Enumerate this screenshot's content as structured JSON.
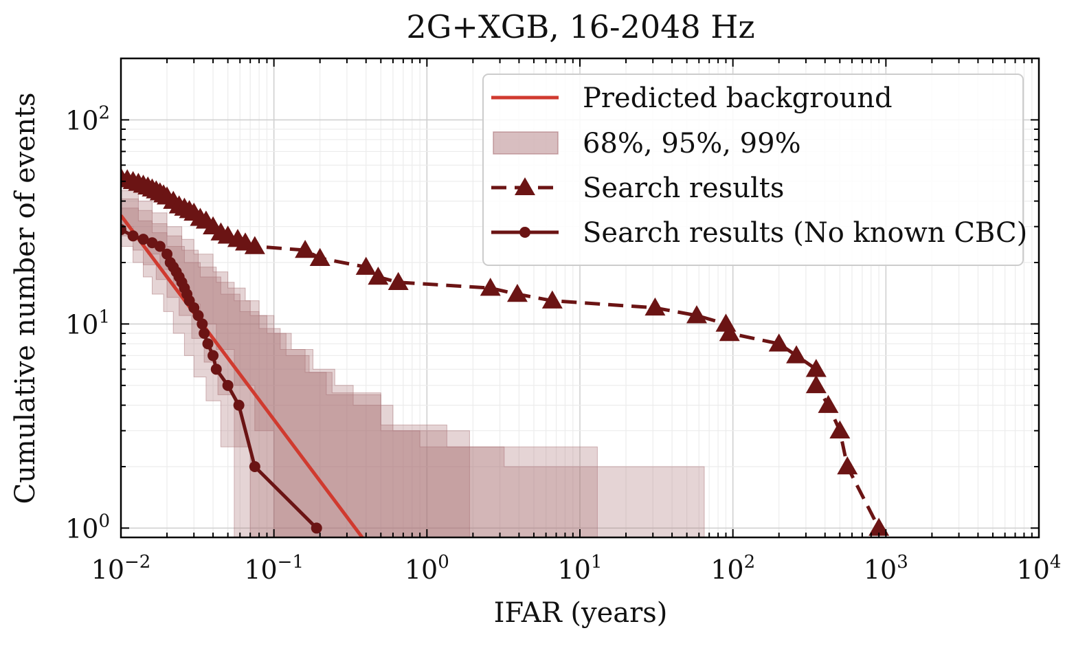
{
  "chart_data": {
    "type": "line",
    "title": "2G+XGB, 16-2048 Hz",
    "xlabel": "IFAR (years)",
    "ylabel": "Cumulative number of events",
    "x_scale": "log",
    "y_scale": "log",
    "xlim": [
      0.01,
      10000
    ],
    "ylim": [
      0.9,
      200
    ],
    "x_ticks": [
      {
        "base": "10",
        "exp": "−2",
        "value": 0.01
      },
      {
        "base": "10",
        "exp": "−1",
        "value": 0.1
      },
      {
        "base": "10",
        "exp": "0",
        "value": 1
      },
      {
        "base": "10",
        "exp": "1",
        "value": 10
      },
      {
        "base": "10",
        "exp": "2",
        "value": 100
      },
      {
        "base": "10",
        "exp": "3",
        "value": 1000
      },
      {
        "base": "10",
        "exp": "4",
        "value": 10000
      }
    ],
    "y_ticks": [
      {
        "base": "10",
        "exp": "0",
        "value": 1
      },
      {
        "base": "10",
        "exp": "1",
        "value": 10
      },
      {
        "base": "10",
        "exp": "2",
        "value": 100
      }
    ],
    "grid": true,
    "legend_position": "top-right",
    "legend": [
      {
        "label": "Predicted background",
        "kind": "line"
      },
      {
        "label": "68%, 95%, 99%",
        "kind": "band"
      },
      {
        "label": "Search results",
        "kind": "dashed-triangle"
      },
      {
        "label": "Search results (No known CBC)",
        "kind": "solid-circle"
      }
    ],
    "colors": {
      "predicted": "#d03a2f",
      "band": "#a86f73",
      "search": "#6b1414"
    },
    "predicted_background": {
      "x": [
        0.01,
        0.4
      ],
      "y": [
        34,
        0.85
      ]
    },
    "bands": [
      {
        "name": "99%",
        "upper_x": [
          0.01,
          0.013,
          0.016,
          0.02,
          0.025,
          0.03,
          0.04,
          0.05,
          0.065,
          0.08,
          0.1,
          0.13,
          0.18,
          0.25,
          0.33,
          0.6,
          0.9,
          3.2,
          65
        ],
        "upper_y": [
          45,
          40,
          35,
          30,
          26,
          22,
          18,
          15,
          13,
          11,
          9,
          7.5,
          6,
          5,
          4,
          3,
          2.5,
          2,
          1.5
        ],
        "lower_x": [
          0.01,
          0.012,
          0.014,
          0.016,
          0.019,
          0.022,
          0.026,
          0.03,
          0.036,
          0.045,
          0.055
        ],
        "lower_y": [
          24,
          20,
          17,
          14,
          11.5,
          9,
          7,
          5.5,
          4.2,
          2.5,
          1.5
        ]
      },
      {
        "name": "95%",
        "upper_x": [
          0.01,
          0.013,
          0.016,
          0.02,
          0.025,
          0.032,
          0.042,
          0.055,
          0.07,
          0.09,
          0.12,
          0.17,
          0.24,
          0.5,
          1.35,
          13
        ],
        "upper_y": [
          41,
          36,
          31,
          27,
          23,
          19,
          16,
          13,
          11,
          9,
          7,
          5.8,
          4.6,
          3.2,
          2.5,
          1.5
        ],
        "lower_x": [
          0.01,
          0.012,
          0.014,
          0.017,
          0.02,
          0.024,
          0.029,
          0.035,
          0.043,
          0.055,
          0.07
        ],
        "lower_y": [
          27,
          23,
          19.5,
          16.5,
          13.5,
          11,
          8.5,
          6.5,
          4.5,
          2.5,
          1.5
        ]
      },
      {
        "name": "68%",
        "upper_x": [
          0.01,
          0.013,
          0.016,
          0.02,
          0.026,
          0.033,
          0.045,
          0.06,
          0.08,
          0.11,
          0.16,
          0.22,
          0.5,
          1.9
        ],
        "upper_y": [
          37,
          32,
          28,
          24,
          20,
          17,
          14,
          11.5,
          9.5,
          7.5,
          5.8,
          4.5,
          3,
          2
        ],
        "lower_x": [
          0.01,
          0.012,
          0.015,
          0.018,
          0.022,
          0.027,
          0.033,
          0.042,
          0.055,
          0.075,
          0.1
        ],
        "lower_y": [
          30,
          26,
          22,
          18.5,
          15.5,
          12.5,
          10,
          7.5,
          5,
          3,
          1.5
        ]
      }
    ],
    "series": [
      {
        "name": "Search results",
        "style": "dashed",
        "marker": "triangle",
        "x": [
          0.01,
          0.011,
          0.012,
          0.013,
          0.014,
          0.015,
          0.016,
          0.017,
          0.018,
          0.019,
          0.02,
          0.022,
          0.024,
          0.026,
          0.028,
          0.03,
          0.033,
          0.036,
          0.04,
          0.045,
          0.05,
          0.058,
          0.065,
          0.075,
          0.16,
          0.2,
          0.4,
          0.48,
          0.65,
          2.6,
          3.9,
          6.6,
          31,
          58,
          90,
          95,
          200,
          260,
          350,
          350,
          420,
          500,
          560,
          900
        ],
        "y": [
          52,
          51,
          50,
          49,
          48,
          47,
          46,
          45,
          44,
          43,
          42,
          40,
          38,
          37,
          36,
          35,
          33,
          32,
          30,
          28,
          27,
          26,
          25,
          24,
          23,
          21,
          19,
          17,
          16,
          15,
          14,
          13,
          12,
          11,
          10,
          9,
          8,
          7,
          6,
          5,
          4,
          3,
          2,
          1
        ]
      },
      {
        "name": "Search results (No known CBC)",
        "style": "solid",
        "marker": "circle",
        "x": [
          0.01,
          0.012,
          0.014,
          0.016,
          0.018,
          0.02,
          0.021,
          0.022,
          0.023,
          0.024,
          0.025,
          0.026,
          0.027,
          0.028,
          0.03,
          0.032,
          0.034,
          0.035,
          0.037,
          0.04,
          0.042,
          0.05,
          0.059,
          0.075,
          0.19
        ],
        "y": [
          29,
          27,
          26,
          25,
          24,
          22,
          20,
          19,
          18,
          17,
          16,
          15,
          14,
          13,
          12,
          11,
          10,
          9,
          8,
          7,
          6,
          5,
          4,
          2,
          1
        ]
      }
    ]
  }
}
